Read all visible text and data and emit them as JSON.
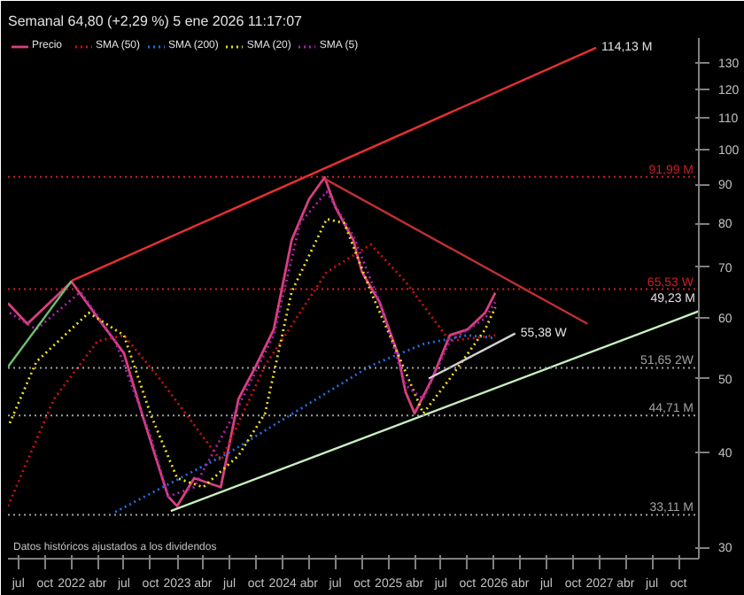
{
  "chart_data": {
    "type": "line",
    "title": "Semanal 64,80 (+2,29 %) 5 ene 2026 11:17:07",
    "log": "y",
    "grid": false,
    "legend": "top left",
    "xlim": [
      "2021-05-26",
      "2027-12-10"
    ],
    "ylim": [
      29,
      140
    ],
    "yticks": [
      30,
      40,
      50,
      60,
      70,
      80,
      90,
      100,
      110,
      120,
      130
    ],
    "xticks": [
      {
        "value": "2021-07",
        "label": "jul"
      },
      {
        "value": "2021-10",
        "label": "oct"
      },
      {
        "value": "2022-01",
        "label": "2022"
      },
      {
        "value": "2022-04",
        "label": "abr"
      },
      {
        "value": "2022-07",
        "label": "jul"
      },
      {
        "value": "2022-10",
        "label": "oct"
      },
      {
        "value": "2023-01",
        "label": "2023"
      },
      {
        "value": "2023-04",
        "label": "abr"
      },
      {
        "value": "2023-07",
        "label": "jul"
      },
      {
        "value": "2023-10",
        "label": "oct"
      },
      {
        "value": "2024-01",
        "label": "2024"
      },
      {
        "value": "2024-04",
        "label": "abr"
      },
      {
        "value": "2024-07",
        "label": "jul"
      },
      {
        "value": "2024-10",
        "label": "oct"
      },
      {
        "value": "2025-01",
        "label": "2025"
      },
      {
        "value": "2025-04",
        "label": "abr"
      },
      {
        "value": "2025-07",
        "label": "jul"
      },
      {
        "value": "2025-10",
        "label": "oct"
      },
      {
        "value": "2026-01",
        "label": "2026"
      },
      {
        "value": "2026-04",
        "label": "abr"
      },
      {
        "value": "2026-07",
        "label": "jul"
      },
      {
        "value": "2026-10",
        "label": "oct"
      },
      {
        "value": "2027-01",
        "label": "2027"
      },
      {
        "value": "2027-04",
        "label": "abr"
      },
      {
        "value": "2027-07",
        "label": "jul"
      },
      {
        "value": "2027-10",
        "label": "oct"
      }
    ],
    "series": [
      {
        "name": "Precio",
        "color": "#d8407f",
        "line_style": "solid",
        "x": [
          "2021-05-26",
          "2021-08",
          "2022-01",
          "2022-05",
          "2022-07",
          "2022-09",
          "2022-11",
          "2022-12",
          "2023-01",
          "2023-03",
          "2023-06",
          "2023-08",
          "2023-10",
          "2023-12",
          "2024-02",
          "2024-04",
          "2024-05-25",
          "2024-07",
          "2024-09",
          "2024-10",
          "2024-12",
          "2025-02",
          "2025-03",
          "2025-04",
          "2025-06",
          "2025-08",
          "2025-10",
          "2025-12",
          "2026-01-05"
        ],
        "values": [
          62.8,
          59,
          67,
          58,
          54,
          45,
          38,
          35,
          34,
          37,
          36,
          47,
          52,
          58,
          76,
          86,
          91.9,
          84,
          76,
          69,
          63,
          54,
          48,
          45,
          50,
          57,
          58,
          61,
          64.8
        ]
      },
      {
        "name": "SMA (50)",
        "color": "#cc1010",
        "line_style": "dotted",
        "x": [
          "2021-05-26",
          "2021-11",
          "2022-04",
          "2022-07",
          "2022-11",
          "2023-06",
          "2023-11",
          "2024-06",
          "2024-11",
          "2025-03",
          "2025-08",
          "2026-01-05"
        ],
        "values": [
          34,
          47,
          56,
          57,
          50,
          39,
          52,
          69,
          75,
          67,
          56,
          57
        ]
      },
      {
        "name": "SMA (200)",
        "color": "#1e6fe0",
        "line_style": "dotted",
        "x": [
          "2022-06",
          "2023-07",
          "2024-11",
          "2025-05",
          "2025-10",
          "2026-01-05"
        ],
        "values": [
          33.4,
          40,
          52,
          55.5,
          57,
          56.5
        ]
      },
      {
        "name": "SMA (20)",
        "color": "#f0e020",
        "line_style": "dotted",
        "x": [
          "2021-06",
          "2021-09",
          "2022-03",
          "2022-07",
          "2022-10",
          "2023-01",
          "2023-04",
          "2023-08",
          "2023-11",
          "2024-02",
          "2024-06",
          "2024-08",
          "2024-11",
          "2025-02",
          "2025-05",
          "2025-08",
          "2025-12",
          "2026-01-05"
        ],
        "values": [
          43.7,
          52.6,
          61,
          57,
          44.9,
          37,
          36,
          39.6,
          45,
          65,
          81,
          80,
          65,
          54,
          45,
          50,
          58,
          62
        ]
      },
      {
        "name": "SMA (5)",
        "color": "#b020b0",
        "line_style": "dotted",
        "x": [
          "2021-06",
          "2021-09",
          "2022-02",
          "2022-06",
          "2022-10",
          "2022-12",
          "2023-03",
          "2023-08",
          "2023-12",
          "2024-03",
          "2024-06",
          "2024-09",
          "2024-12",
          "2025-03",
          "2025-05",
          "2025-08",
          "2025-12",
          "2026-01-05"
        ],
        "values": [
          61,
          58,
          65,
          56,
          42,
          35,
          36,
          46,
          57,
          80,
          88,
          77,
          63,
          49,
          47,
          56,
          60,
          63
        ]
      },
      {
        "color": "#e83030",
        "line_style": "solid",
        "x": [
          "2022-01",
          "2026-12-20"
        ],
        "values": [
          67.2,
          136
        ]
      },
      {
        "color": "#6fc06f",
        "line_style": "solid",
        "x": [
          "2021-05-26",
          "2022-01"
        ],
        "values": [
          51.8,
          67.2
        ]
      },
      {
        "color": "#c8f0c0",
        "line_style": "solid",
        "x": [
          "2022-12-10",
          "2027-12-10"
        ],
        "values": [
          33.5,
          61.3
        ]
      },
      {
        "color": "#c03030",
        "line_style": "solid",
        "x": [
          "2024-05-25",
          "2026-11-20"
        ],
        "values": [
          91.5,
          59
        ]
      },
      {
        "color": "#d0d0d0",
        "line_style": "solid",
        "x": [
          "2025-05-20",
          "2026-03-15"
        ],
        "values": [
          50,
          57.3
        ]
      }
    ],
    "ref_lines": [
      {
        "axis": "y",
        "value": 91.99,
        "label": "91,99 M",
        "color": "#cc2020",
        "line_style": "dotted"
      },
      {
        "axis": "y",
        "value": 65.53,
        "label": "65,53 W",
        "color": "#cc2020",
        "line_style": "dotted"
      },
      {
        "axis": "y",
        "value": 51.65,
        "label": "51,65 2W",
        "color": "#a0a0a0",
        "line_style": "dotted"
      },
      {
        "axis": "y",
        "value": 44.71,
        "label": "44,71 M",
        "color": "#a0a0a0",
        "line_style": "dotted"
      },
      {
        "axis": "y",
        "value": 33.11,
        "label": "33,11 M",
        "color": "#a0a0a0",
        "line_style": "dotted"
      }
    ],
    "annotations": [
      {
        "text": "114,13 M",
        "x": "2026-12-20",
        "y": 136
      },
      {
        "text": "49,23 M",
        "x": "2027-12-10",
        "y": 61.3
      },
      {
        "text": "55,38 W",
        "x": "2026-03-15",
        "y": 57.3
      },
      "Datos históricos ajustados a los dividendos"
    ]
  }
}
